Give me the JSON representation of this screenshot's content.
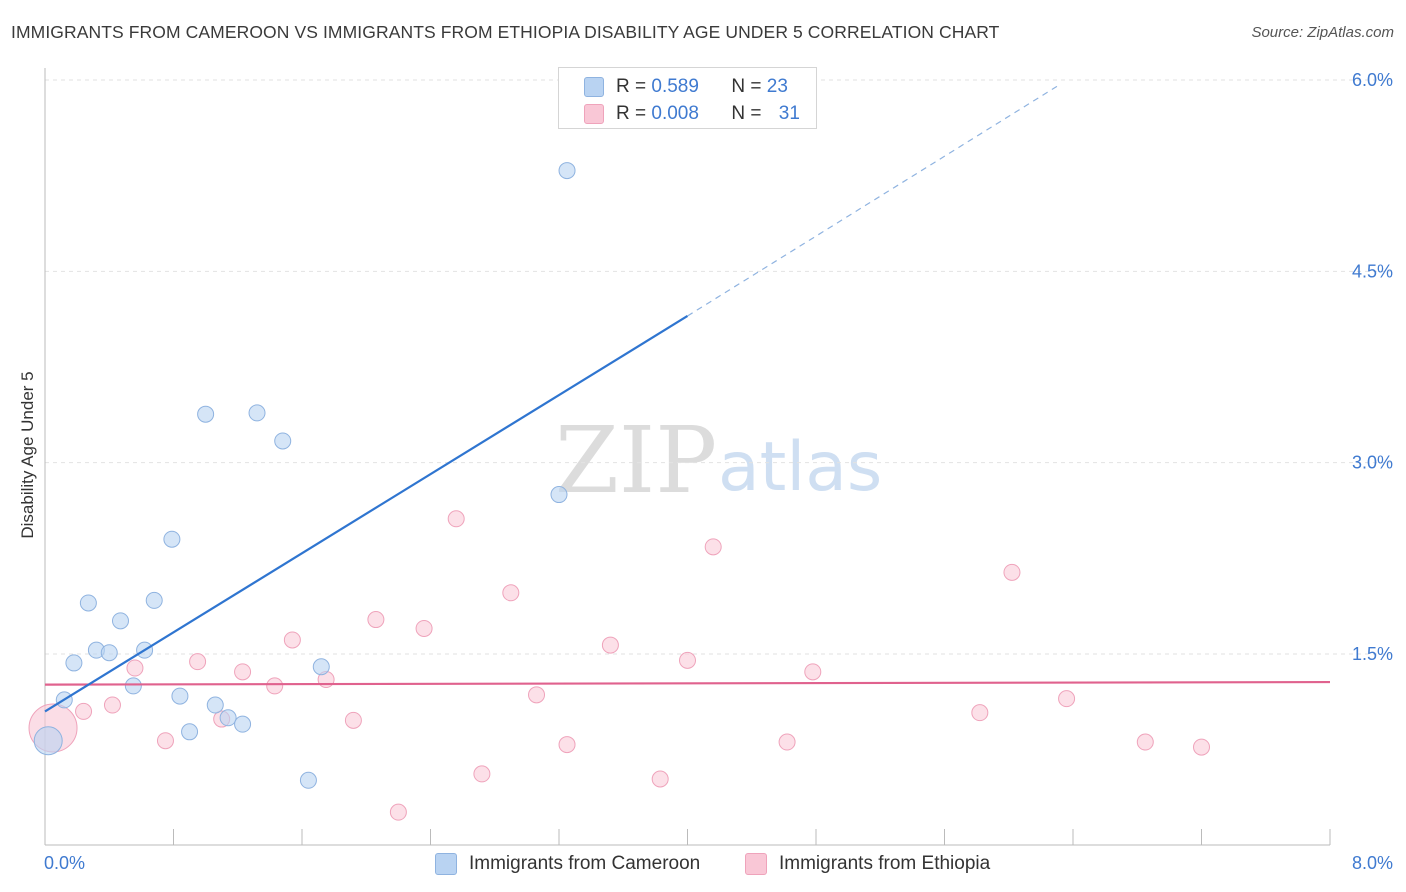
{
  "title": "IMMIGRANTS FROM CAMEROON VS IMMIGRANTS FROM ETHIOPIA DISABILITY AGE UNDER 5 CORRELATION CHART",
  "source": "Source: ZipAtlas.com",
  "watermark": {
    "zip": "ZIP",
    "atlas": "atlas"
  },
  "legend": {
    "r_label": "R = ",
    "n_label": "N = ",
    "series": [
      {
        "r": "0.589",
        "n": "23"
      },
      {
        "r": "0.008",
        "n": "31"
      }
    ]
  },
  "chart_data": {
    "type": "scatter",
    "title": "IMMIGRANTS FROM CAMEROON VS IMMIGRANTS FROM ETHIOPIA DISABILITY AGE UNDER 5 CORRELATION CHART",
    "xlabel": "",
    "ylabel": "Disability Age Under 5",
    "xlim": [
      0,
      8
    ],
    "ylim": [
      0,
      6.2
    ],
    "x_tick_labels": {
      "min": "0.0%",
      "max": "8.0%"
    },
    "y_ticks": [
      {
        "value": 1.5,
        "label": "1.5%"
      },
      {
        "value": 3.0,
        "label": "3.0%"
      },
      {
        "value": 4.5,
        "label": "4.5%"
      },
      {
        "value": 6.0,
        "label": "6.0%"
      }
    ],
    "grid": true,
    "legend_position": "top-center",
    "colors": {
      "cameroon_fill": "#b9d3f2",
      "cameroon_stroke": "#8fb3e0",
      "cameroon_line": "#2f75d0",
      "ethiopia_fill": "#f9c7d6",
      "ethiopia_stroke": "#efa3bb",
      "ethiopia_line": "#e0628e"
    },
    "series": [
      {
        "name": "Immigrants from Cameroon",
        "points": [
          {
            "x": 0.02,
            "y": 0.82,
            "big": true
          },
          {
            "x": 0.12,
            "y": 1.14
          },
          {
            "x": 0.18,
            "y": 1.43
          },
          {
            "x": 0.27,
            "y": 1.9
          },
          {
            "x": 0.32,
            "y": 1.53
          },
          {
            "x": 0.4,
            "y": 1.51
          },
          {
            "x": 0.47,
            "y": 1.76
          },
          {
            "x": 0.55,
            "y": 1.25
          },
          {
            "x": 0.62,
            "y": 1.53
          },
          {
            "x": 0.68,
            "y": 1.92
          },
          {
            "x": 0.79,
            "y": 2.4
          },
          {
            "x": 0.84,
            "y": 1.17
          },
          {
            "x": 0.9,
            "y": 0.89
          },
          {
            "x": 1.0,
            "y": 3.38
          },
          {
            "x": 1.06,
            "y": 1.1
          },
          {
            "x": 1.14,
            "y": 1.0
          },
          {
            "x": 1.23,
            "y": 0.95
          },
          {
            "x": 1.32,
            "y": 3.39
          },
          {
            "x": 1.48,
            "y": 3.17
          },
          {
            "x": 1.64,
            "y": 0.51
          },
          {
            "x": 1.72,
            "y": 1.4
          },
          {
            "x": 3.2,
            "y": 2.75
          },
          {
            "x": 3.25,
            "y": 5.29
          }
        ],
        "trend": {
          "x0": 0.0,
          "y0": 1.05,
          "x1": 4.0,
          "y1": 4.15,
          "dash_to_x": 6.3,
          "dash_to_y": 5.95
        }
      },
      {
        "name": "Immigrants from Ethiopia",
        "points": [
          {
            "x": 0.05,
            "y": 0.92,
            "big": true
          },
          {
            "x": 0.24,
            "y": 1.05
          },
          {
            "x": 0.42,
            "y": 1.1
          },
          {
            "x": 0.56,
            "y": 1.39
          },
          {
            "x": 0.75,
            "y": 0.82
          },
          {
            "x": 0.95,
            "y": 1.44
          },
          {
            "x": 1.1,
            "y": 0.99
          },
          {
            "x": 1.23,
            "y": 1.36
          },
          {
            "x": 1.43,
            "y": 1.25
          },
          {
            "x": 1.54,
            "y": 1.61
          },
          {
            "x": 1.75,
            "y": 1.3
          },
          {
            "x": 1.92,
            "y": 0.98
          },
          {
            "x": 2.06,
            "y": 1.77
          },
          {
            "x": 2.2,
            "y": 0.26
          },
          {
            "x": 2.36,
            "y": 1.7
          },
          {
            "x": 2.56,
            "y": 2.56
          },
          {
            "x": 2.72,
            "y": 0.56
          },
          {
            "x": 2.9,
            "y": 1.98
          },
          {
            "x": 3.06,
            "y": 1.18
          },
          {
            "x": 3.25,
            "y": 0.79
          },
          {
            "x": 3.52,
            "y": 1.57
          },
          {
            "x": 3.83,
            "y": 0.52
          },
          {
            "x": 4.0,
            "y": 1.45
          },
          {
            "x": 4.16,
            "y": 2.34
          },
          {
            "x": 4.62,
            "y": 0.81
          },
          {
            "x": 4.78,
            "y": 1.36
          },
          {
            "x": 5.82,
            "y": 1.04
          },
          {
            "x": 6.02,
            "y": 2.14
          },
          {
            "x": 6.36,
            "y": 1.15
          },
          {
            "x": 6.85,
            "y": 0.81
          },
          {
            "x": 7.2,
            "y": 0.77
          }
        ],
        "trend": {
          "x0": 0.0,
          "y0": 1.26,
          "x1": 8.0,
          "y1": 1.28
        }
      }
    ]
  }
}
